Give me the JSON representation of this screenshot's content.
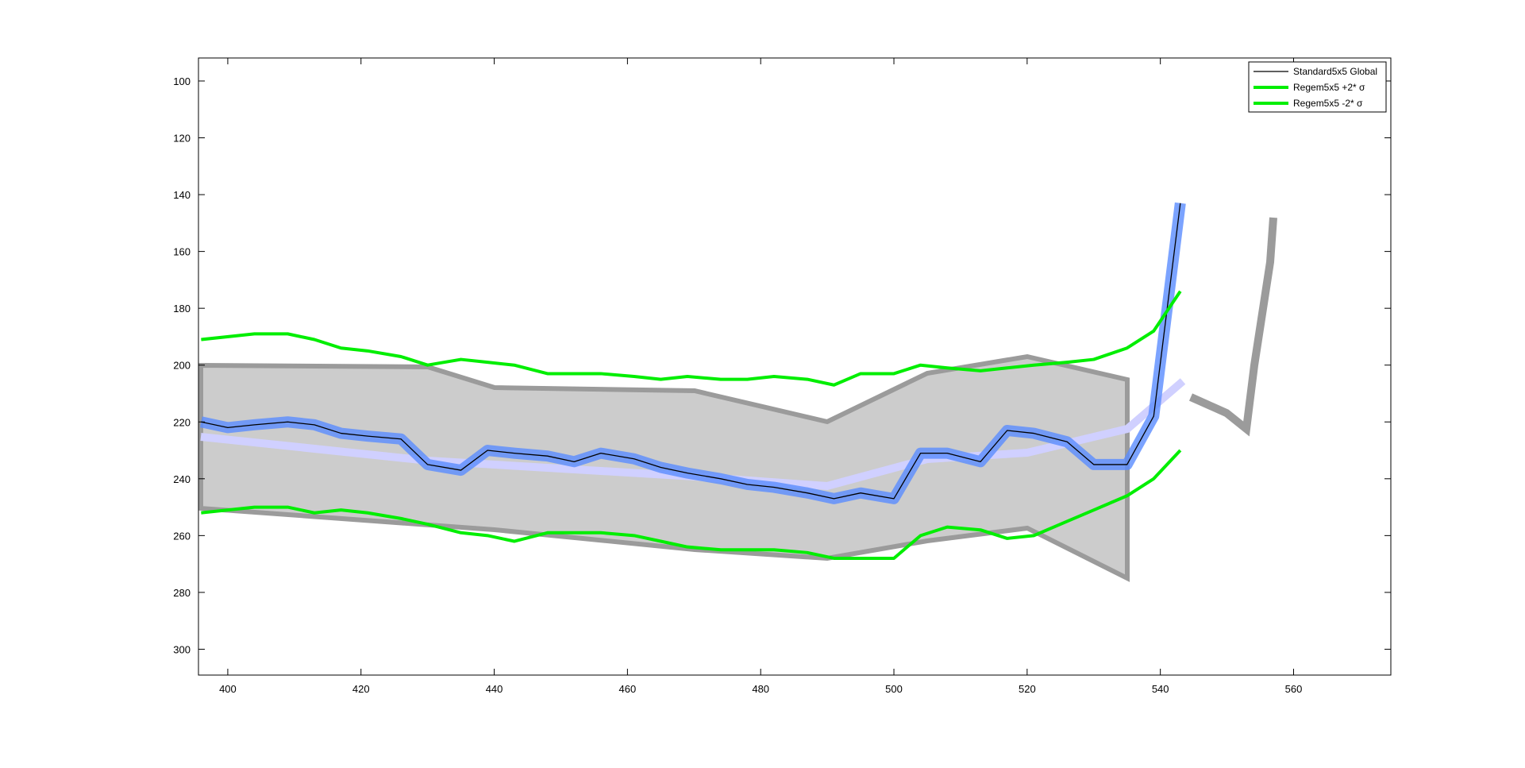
{
  "chart_data": {
    "type": "line",
    "xlim": [
      395.6,
      574.6
    ],
    "ylim": [
      91.9,
      309.1
    ],
    "y_reversed": true,
    "xticks": [
      400,
      420,
      440,
      460,
      480,
      500,
      520,
      540,
      560
    ],
    "yticks": [
      100,
      120,
      140,
      160,
      180,
      200,
      220,
      240,
      260,
      280,
      300
    ],
    "legend": "upper right",
    "series": [
      {
        "name": "Standard5x5 Global",
        "color": "#000000",
        "x": [
          396,
          400,
          404,
          409,
          413,
          417,
          421,
          426,
          430,
          435,
          439,
          443,
          448,
          452,
          456,
          461,
          465,
          469,
          474,
          478,
          482,
          487,
          491,
          495,
          500,
          504,
          508,
          513,
          517,
          521,
          526,
          530,
          535,
          539,
          543
        ],
        "values": [
          220,
          222,
          221,
          220,
          221,
          224,
          225,
          226,
          235,
          237,
          230,
          231,
          232,
          234,
          231,
          233,
          236,
          238,
          240,
          242,
          243,
          245,
          247,
          245,
          247,
          231,
          231,
          234,
          223,
          224,
          227,
          235,
          235,
          218,
          143
        ]
      },
      {
        "name": "Regem5x5 +2* σ",
        "color": "#00ee00",
        "x": [
          396,
          404,
          409,
          413,
          417,
          421,
          426,
          430,
          435,
          439,
          443,
          448,
          452,
          456,
          461,
          465,
          469,
          474,
          478,
          482,
          487,
          491,
          495,
          500,
          504,
          508,
          513,
          517,
          521,
          526,
          530,
          535,
          539,
          543
        ],
        "values": [
          191,
          189,
          189,
          191,
          194,
          195,
          197,
          200,
          198,
          199,
          200,
          203,
          203,
          203,
          204,
          205,
          204,
          205,
          205,
          204,
          205,
          207,
          203,
          203,
          200,
          201,
          202,
          201,
          200,
          199,
          198,
          194,
          188,
          174
        ]
      },
      {
        "name": "Regem5x5 -2* σ",
        "color": "#00ee00",
        "x": [
          396,
          404,
          409,
          413,
          417,
          421,
          426,
          430,
          435,
          439,
          443,
          448,
          452,
          456,
          461,
          465,
          469,
          474,
          478,
          482,
          487,
          491,
          495,
          500,
          504,
          508,
          513,
          517,
          521,
          526,
          530,
          535,
          539,
          543
        ],
        "values": [
          252,
          250,
          250,
          252,
          251,
          252,
          254,
          256,
          259,
          260,
          262,
          259,
          259,
          259,
          260,
          262,
          264,
          265,
          265,
          265,
          266,
          268,
          268,
          268,
          260,
          257,
          258,
          261,
          260,
          255,
          251,
          246,
          240,
          230
        ]
      }
    ]
  }
}
